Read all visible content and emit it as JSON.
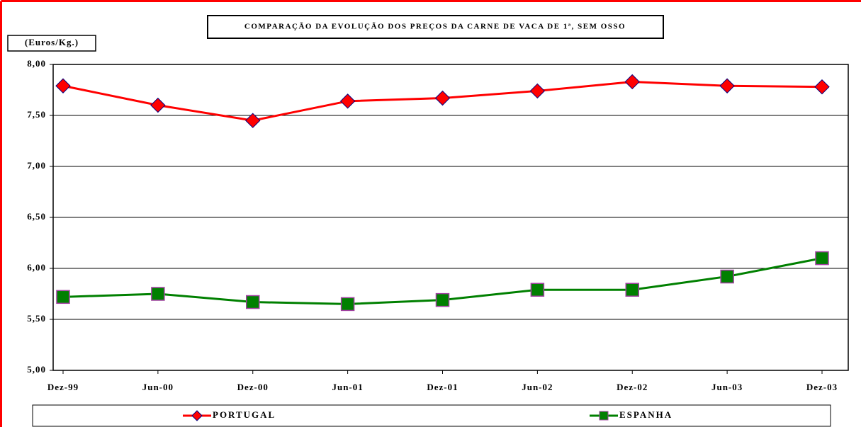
{
  "chart_data": {
    "type": "line",
    "title": "COMPARAÇÃO DA EVOLUÇÃO DOS PREÇOS DA CARNE DE VACA DE 1ª, SEM OSSO",
    "y_label": "(Euros/Kg.)",
    "categories": [
      "Dez-99",
      "Jun-00",
      "Dez-00",
      "Jun-01",
      "Dez-01",
      "Jun-02",
      "Dez-02",
      "Jun-03",
      "Dez-03"
    ],
    "series": [
      {
        "name": "PORTUGAL",
        "color": "#ff0000",
        "marker_color": "#ff0000",
        "values": [
          7.79,
          7.6,
          7.45,
          7.64,
          7.67,
          7.74,
          7.83,
          7.79,
          7.78
        ]
      },
      {
        "name": "ESPANHA",
        "color": "#008000",
        "marker_color": "#008000",
        "values": [
          5.72,
          5.75,
          5.67,
          5.65,
          5.69,
          5.79,
          5.79,
          5.92,
          6.1
        ]
      }
    ],
    "ylim": [
      5,
      8
    ],
    "yticks": [
      {
        "value": 5,
        "label": "5,00"
      },
      {
        "value": 5.5,
        "label": "5,50"
      },
      {
        "value": 6,
        "label": "6,00"
      },
      {
        "value": 6.5,
        "label": "6,50"
      },
      {
        "value": 7,
        "label": "7,00"
      },
      {
        "value": 7.5,
        "label": "7,50"
      },
      {
        "value": 8,
        "label": "8,00"
      }
    ],
    "grid": true
  }
}
